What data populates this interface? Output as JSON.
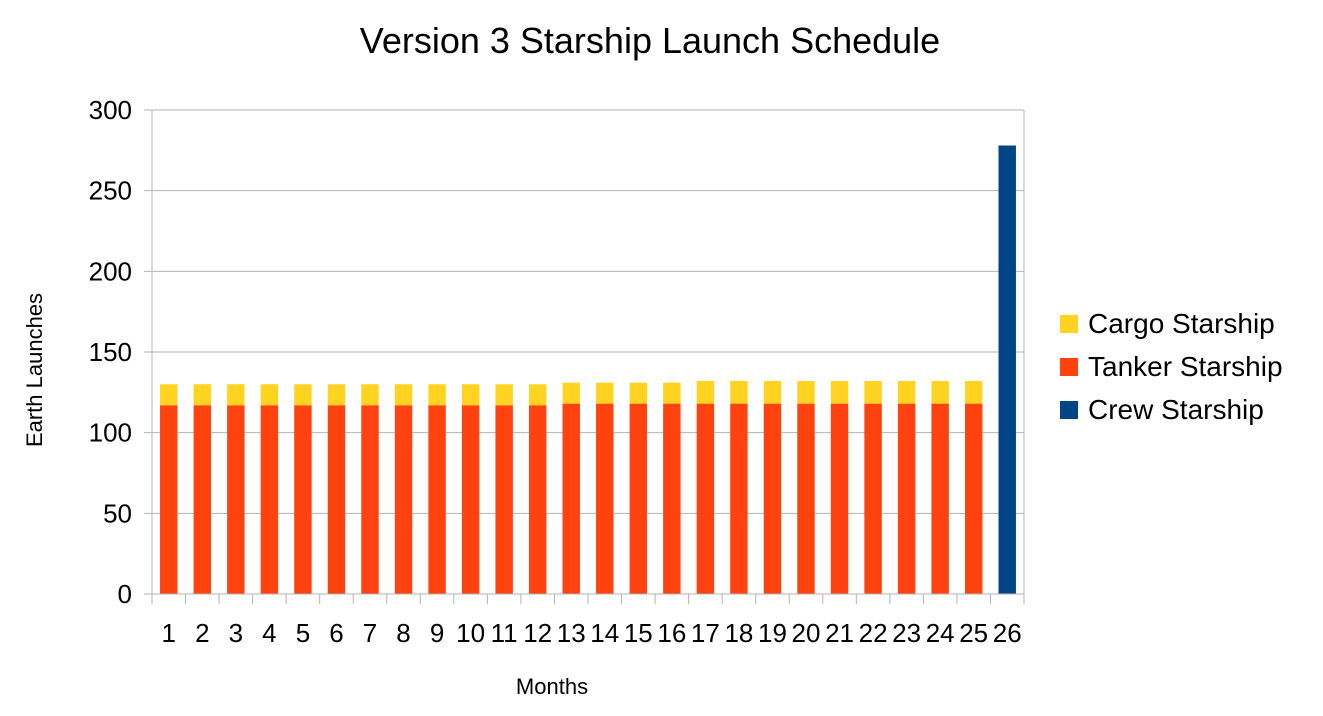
{
  "chart_data": {
    "type": "bar",
    "stacked": true,
    "title": "Version 3 Starship Launch Schedule",
    "xlabel": "Months",
    "ylabel": "Earth Launches",
    "ylim": [
      0,
      300
    ],
    "yticks": [
      0,
      50,
      100,
      150,
      200,
      250,
      300
    ],
    "grid": true,
    "legend_position": "right",
    "categories": [
      "1",
      "2",
      "3",
      "4",
      "5",
      "6",
      "7",
      "8",
      "9",
      "10",
      "11",
      "12",
      "13",
      "14",
      "15",
      "16",
      "17",
      "18",
      "19",
      "20",
      "21",
      "22",
      "23",
      "24",
      "25",
      "26"
    ],
    "series": [
      {
        "name": "Tanker Starship",
        "color": "#ff420e",
        "values": [
          117,
          117,
          117,
          117,
          117,
          117,
          117,
          117,
          117,
          117,
          117,
          117,
          118,
          118,
          118,
          118,
          118,
          118,
          118,
          118,
          118,
          118,
          118,
          118,
          118,
          0
        ]
      },
      {
        "name": "Cargo Starship",
        "color": "#ffd320",
        "values": [
          13,
          13,
          13,
          13,
          13,
          13,
          13,
          13,
          13,
          13,
          13,
          13,
          13,
          13,
          13,
          13,
          14,
          14,
          14,
          14,
          14,
          14,
          14,
          14,
          14,
          0
        ]
      },
      {
        "name": "Crew Starship",
        "color": "#004586",
        "values": [
          0,
          0,
          0,
          0,
          0,
          0,
          0,
          0,
          0,
          0,
          0,
          0,
          0,
          0,
          0,
          0,
          0,
          0,
          0,
          0,
          0,
          0,
          0,
          0,
          0,
          278
        ]
      }
    ],
    "legend_order": [
      "Cargo Starship",
      "Tanker Starship",
      "Crew Starship"
    ]
  }
}
